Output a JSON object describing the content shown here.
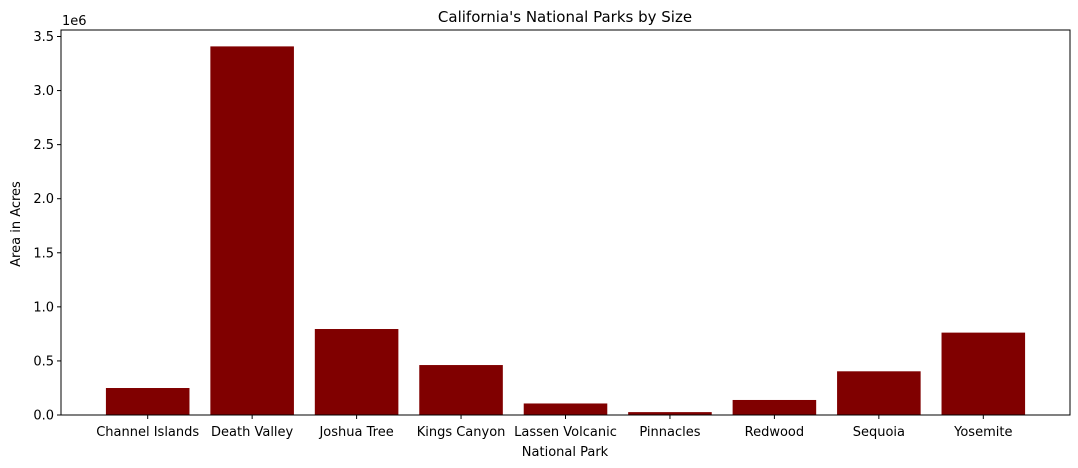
{
  "chart_data": {
    "type": "bar",
    "title": "California's National Parks by Size",
    "xlabel": "National Park",
    "ylabel": "Area in Acres",
    "y_offset_text": "1e6",
    "categories": [
      "Channel Islands",
      "Death Valley",
      "Joshua Tree",
      "Kings Canyon",
      "Lassen Volcanic",
      "Pinnacles",
      "Redwood",
      "Sequoia",
      "Yosemite"
    ],
    "values": [
      249561,
      3408407,
      795156,
      461901,
      106589,
      26686,
      138999,
      404064,
      761748
    ],
    "ylim": [
      0,
      3560000
    ],
    "yticks": [
      0.0,
      0.5,
      1.0,
      1.5,
      2.0,
      2.5,
      3.0,
      3.5
    ],
    "bar_color": "#800000",
    "grid": false,
    "legend": "none"
  }
}
